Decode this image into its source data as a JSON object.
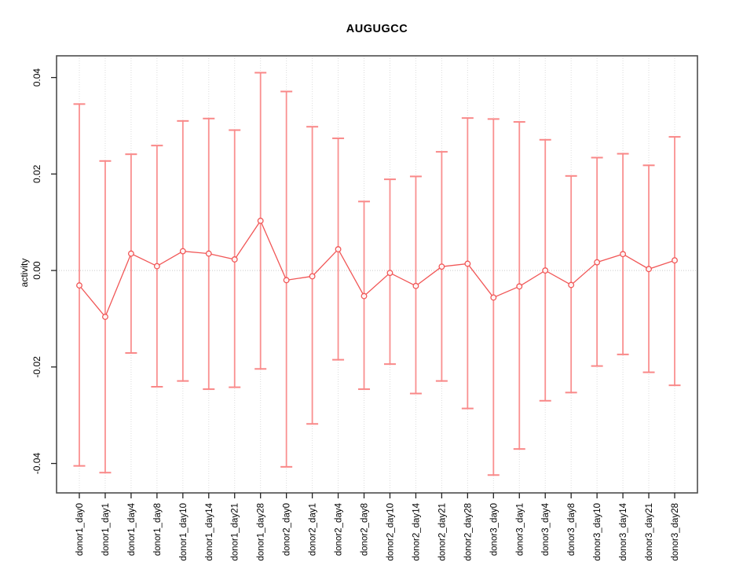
{
  "title": "AUGUGCC",
  "colors": {
    "error_bar": "#f99090",
    "error_cap": "#f98888",
    "series_line": "#f15757",
    "point_stroke": "#f15757",
    "grid": "#dcdcdc",
    "zero_line": "#c9c9c9",
    "box": "#4d4d4d",
    "tick": "#222222",
    "text": "#000000",
    "background": "#ffffff"
  },
  "chart_data": {
    "type": "scatter",
    "title": "AUGUGCC",
    "xlabel": "",
    "ylabel": "activity",
    "ylim": [
      -0.0461,
      0.0445
    ],
    "y_ticks": [
      -0.04,
      -0.02,
      0.0,
      0.02,
      0.04
    ],
    "y_tick_labels": [
      "-0.04",
      "-0.02",
      "0.00",
      "0.02",
      "0.04"
    ],
    "grid": "dotted vertical gridline at every category; dotted horizontal line at y=0 only",
    "legend": "none",
    "marker": "open-circle",
    "error_bars": true,
    "categories": [
      "donor1_day0",
      "donor1_day1",
      "donor1_day4",
      "donor1_day8",
      "donor1_day10",
      "donor1_day14",
      "donor1_day21",
      "donor1_day28",
      "donor2_day0",
      "donor2_day1",
      "donor2_day4",
      "donor2_day8",
      "donor2_day10",
      "donor2_day14",
      "donor2_day21",
      "donor2_day28",
      "donor3_day0",
      "donor3_day1",
      "donor3_day4",
      "donor3_day8",
      "donor3_day10",
      "donor3_day14",
      "donor3_day21",
      "donor3_day28"
    ],
    "series": [
      {
        "name": "activity",
        "values": [
          -0.0031,
          -0.0096,
          0.0035,
          0.0009,
          0.004,
          0.0035,
          0.0023,
          0.0103,
          -0.002,
          -0.0012,
          0.0044,
          -0.0053,
          -0.0005,
          -0.0032,
          0.0008,
          0.0014,
          -0.0056,
          -0.0033,
          0.0,
          -0.003,
          0.0017,
          0.0034,
          0.0003,
          0.0021
        ],
        "error_high": [
          0.0345,
          0.0227,
          0.0241,
          0.0259,
          0.031,
          0.0315,
          0.0291,
          0.041,
          0.0371,
          0.0298,
          0.0274,
          0.0143,
          0.0189,
          0.0195,
          0.0246,
          0.0316,
          0.0314,
          0.0308,
          0.0271,
          0.0196,
          0.0234,
          0.0242,
          0.0218,
          0.0277
        ],
        "error_low": [
          -0.0405,
          -0.0419,
          -0.0171,
          -0.0241,
          -0.0229,
          -0.0246,
          -0.0242,
          -0.0204,
          -0.0407,
          -0.0318,
          -0.0185,
          -0.0246,
          -0.0194,
          -0.0255,
          -0.0229,
          -0.0286,
          -0.0424,
          -0.037,
          -0.027,
          -0.0253,
          -0.0198,
          -0.0174,
          -0.0211,
          -0.0238
        ]
      }
    ]
  }
}
